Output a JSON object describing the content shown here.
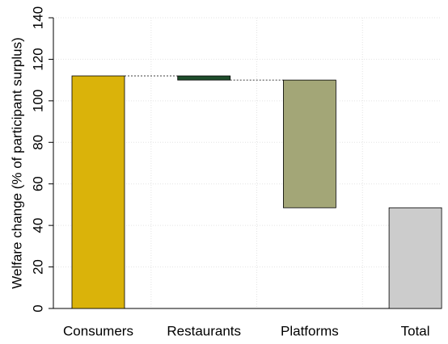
{
  "chart_data": {
    "type": "waterfall",
    "y_label": "Welfare change (% of participant surplus)",
    "categories": [
      "Consumers",
      "Restaurants",
      "Platforms",
      "Total"
    ],
    "values": [
      112,
      -2,
      -61.5,
      48.5
    ],
    "is_total": [
      false,
      false,
      false,
      true
    ],
    "colors": [
      "#dab30a",
      "#1e4d2b",
      "#a3a677",
      "#cccccc"
    ],
    "ylim": [
      0,
      140
    ],
    "yticks": [
      0,
      20,
      40,
      60,
      80,
      100,
      120,
      140
    ],
    "grid": true
  }
}
